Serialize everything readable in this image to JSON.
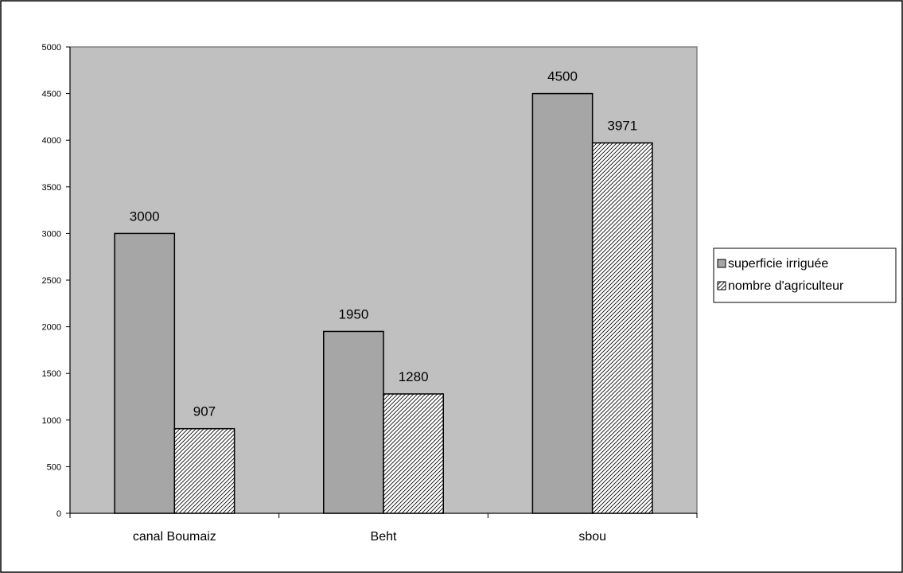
{
  "chart_data": {
    "type": "bar",
    "categories": [
      "canal Boumaiz",
      "Beht",
      "sbou"
    ],
    "series": [
      {
        "name": "superficie irriguée",
        "values": [
          3000,
          1950,
          4500
        ],
        "color": "#a6a6a6",
        "pattern": "solid"
      },
      {
        "name": "nombre d'agriculteur",
        "values": [
          907,
          1280,
          3971
        ],
        "color": "#ffffff",
        "pattern": "diagonal-hatch"
      }
    ],
    "ylim": [
      0,
      5000
    ],
    "yticks": [
      0,
      500,
      1000,
      1500,
      2000,
      2500,
      3000,
      3500,
      4000,
      4500,
      5000
    ],
    "grid": false,
    "legend": "right",
    "plot_background": "#c0c0c0",
    "title": "",
    "xlabel": "",
    "ylabel": ""
  }
}
